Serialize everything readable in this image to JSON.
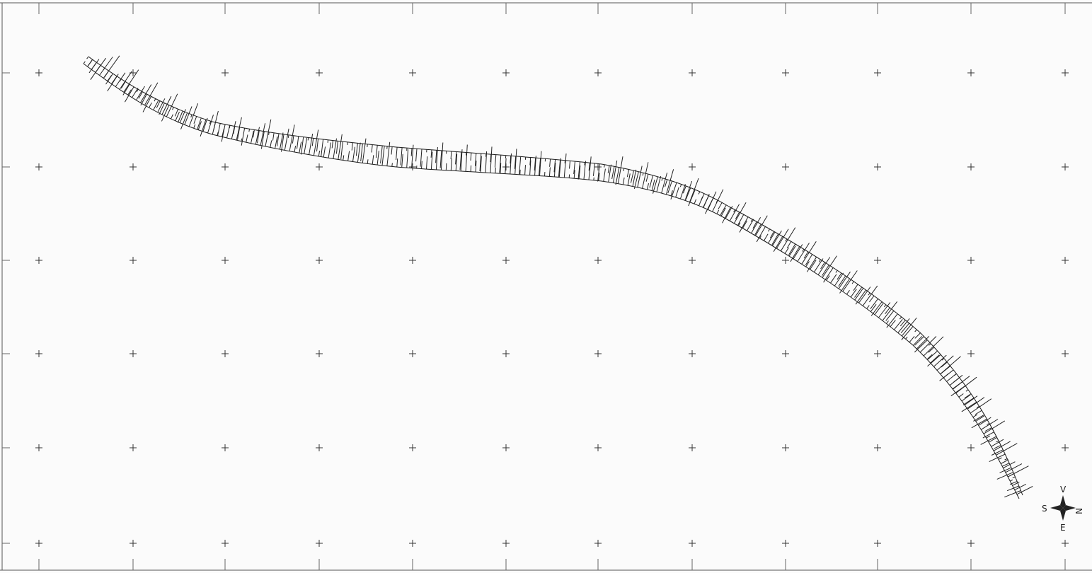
{
  "map": {
    "type": "cadastral-strip-map",
    "background_color": "#fbfbfb",
    "line_color": "#1a1a1a",
    "grid": {
      "cross_marks": true,
      "columns": 12,
      "rows": 6
    },
    "compass": {
      "icon": "compass-rose-icon",
      "north": "N",
      "south": "S",
      "east": "E",
      "west": "V"
    }
  }
}
